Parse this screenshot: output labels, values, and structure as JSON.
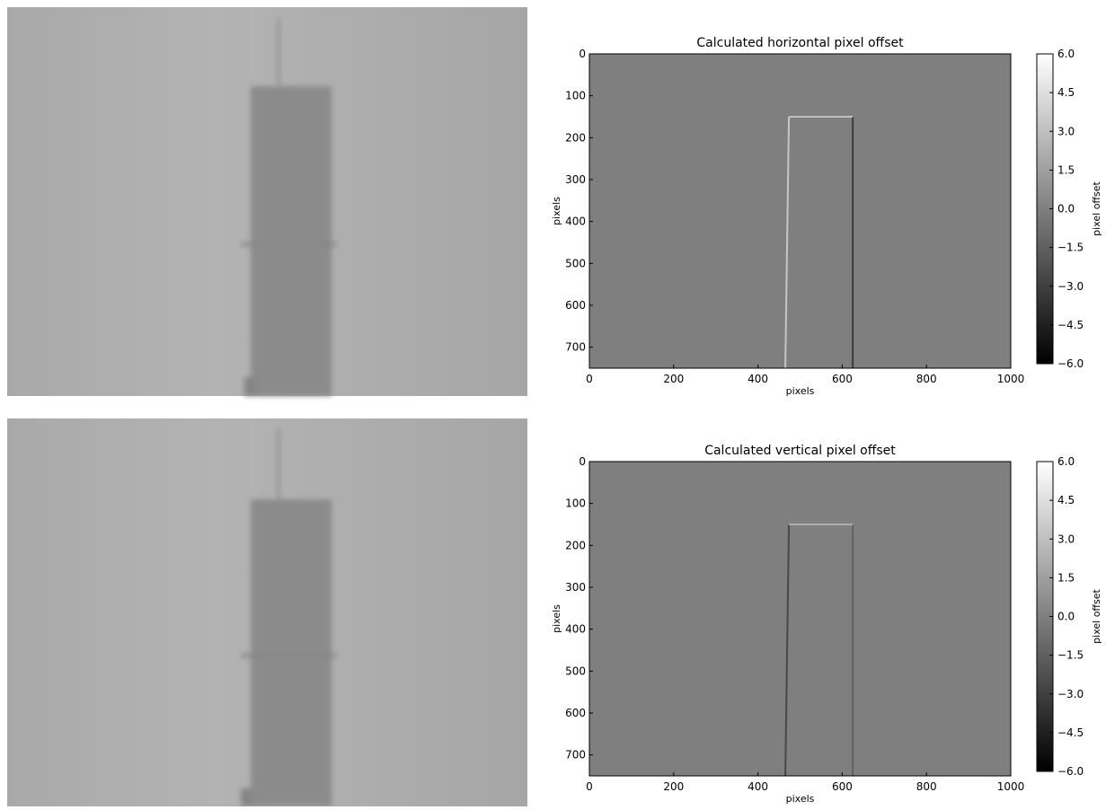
{
  "chart_data": [
    {
      "type": "heatmap",
      "title": "Calculated horizontal pixel offset",
      "xlabel": "pixels",
      "ylabel": "pixels",
      "cmap": "gray",
      "xlim": [
        0,
        1000
      ],
      "xticks": [
        0,
        200,
        400,
        600,
        800,
        1000
      ],
      "ylim": [
        750,
        0
      ],
      "yticks": [
        0,
        100,
        200,
        300,
        400,
        500,
        600,
        700
      ],
      "colorbar": {
        "label": "pixel offset",
        "lim": [
          -6,
          6
        ],
        "ticks": [
          {
            "value": 6,
            "label": "6.0"
          },
          {
            "value": 4.5,
            "label": "4.5"
          },
          {
            "value": 3,
            "label": "3.0"
          },
          {
            "value": 1.5,
            "label": "1.5"
          },
          {
            "value": 0,
            "label": "0.0"
          },
          {
            "value": -1.5,
            "label": "−1.5"
          },
          {
            "value": -3,
            "label": "−3.0"
          },
          {
            "value": -4.5,
            "label": "−4.5"
          },
          {
            "value": -6,
            "label": "−6.0"
          }
        ]
      }
    },
    {
      "type": "heatmap",
      "title": "Calculated vertical pixel offset",
      "xlabel": "pixels",
      "ylabel": "pixels",
      "cmap": "gray",
      "xlim": [
        0,
        1000
      ],
      "xticks": [
        0,
        200,
        400,
        600,
        800,
        1000
      ],
      "ylim": [
        750,
        0
      ],
      "yticks": [
        0,
        100,
        200,
        300,
        400,
        500,
        600,
        700
      ],
      "colorbar": {
        "label": "pixel offset",
        "lim": [
          -6,
          6
        ],
        "ticks": [
          {
            "value": 6,
            "label": "6.0"
          },
          {
            "value": 4.5,
            "label": "4.5"
          },
          {
            "value": 3,
            "label": "3.0"
          },
          {
            "value": 1.5,
            "label": "1.5"
          },
          {
            "value": 0,
            "label": "0.0"
          },
          {
            "value": -1.5,
            "label": "−1.5"
          },
          {
            "value": -3,
            "label": "−3.0"
          },
          {
            "value": -4.5,
            "label": "−4.5"
          },
          {
            "value": -6,
            "label": "−6.0"
          }
        ]
      }
    }
  ]
}
